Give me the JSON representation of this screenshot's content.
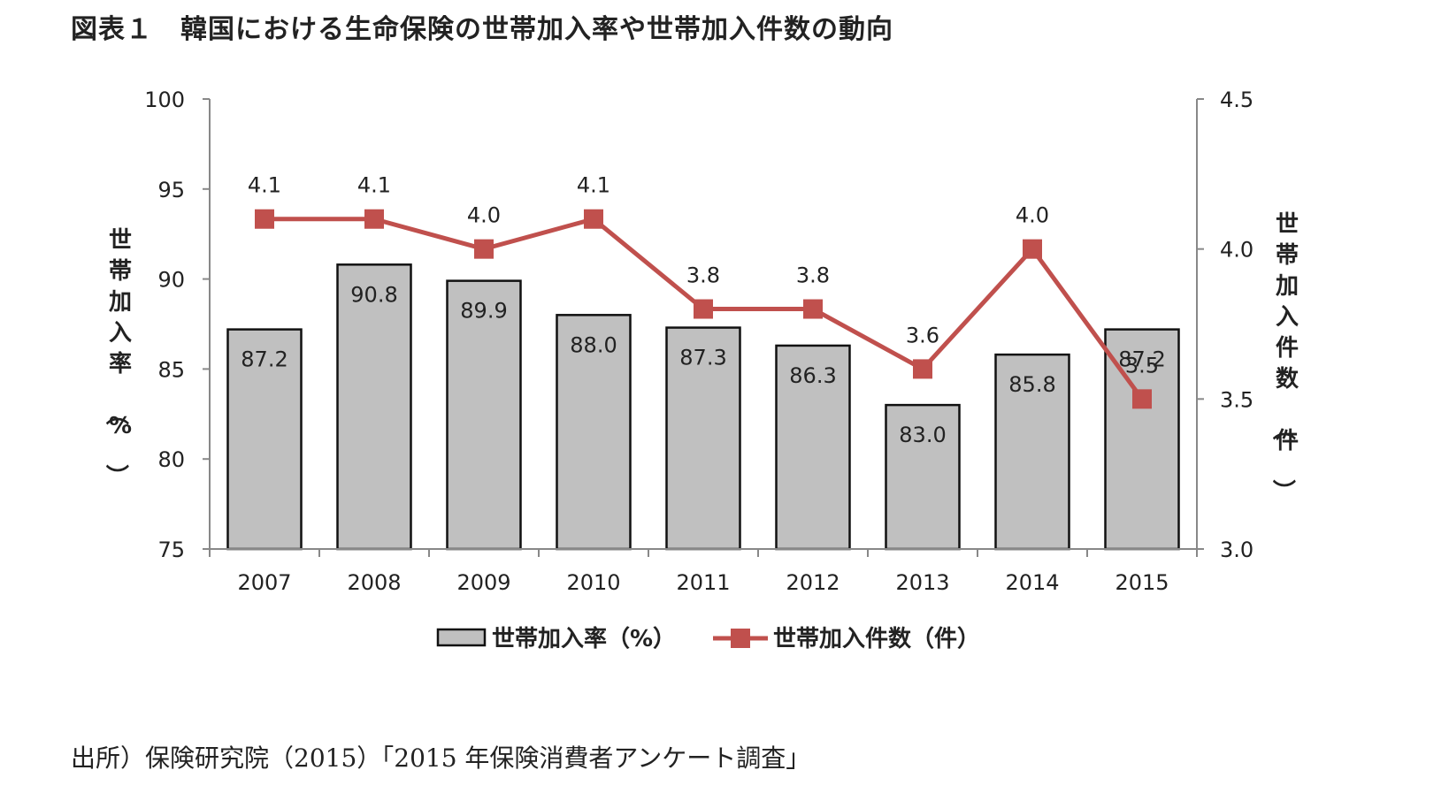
{
  "figure": {
    "title": "図表１　韓国における生命保険の世帯加入率や世帯加入件数の動向",
    "source": "出所）保険研究院（2015）「2015 年保険消費者アンケート調査」"
  },
  "chart_data": {
    "type": "bar+line",
    "categories": [
      "2007",
      "2008",
      "2009",
      "2010",
      "2011",
      "2012",
      "2013",
      "2014",
      "2015"
    ],
    "series": [
      {
        "name": "世帯加入率（%）",
        "type": "bar",
        "axis": "left",
        "values": [
          87.2,
          90.8,
          89.9,
          88.0,
          87.3,
          86.3,
          83.0,
          85.8,
          87.2
        ],
        "labels": [
          "87.2",
          "90.8",
          "89.9",
          "88.0",
          "87.3",
          "86.3",
          "83.0",
          "85.8",
          "87.2"
        ],
        "color": "#c0c0c0"
      },
      {
        "name": "世帯加入件数（件）",
        "type": "line",
        "axis": "right",
        "values": [
          4.1,
          4.1,
          4.0,
          4.1,
          3.8,
          3.8,
          3.6,
          4.0,
          3.5
        ],
        "labels": [
          "4.1",
          "4.1",
          "4.0",
          "4.1",
          "3.8",
          "3.8",
          "3.6",
          "4.0",
          "3.5"
        ],
        "color": "#c0504d"
      }
    ],
    "y_left": {
      "label": "世帯加入率（%）",
      "range": [
        75,
        100
      ],
      "ticks": [
        "75",
        "80",
        "85",
        "90",
        "95",
        "100"
      ]
    },
    "y_right": {
      "label": "世帯加入件数（件）",
      "range": [
        3.0,
        4.5
      ],
      "ticks": [
        "3.0",
        "3.5",
        "4.0",
        "4.5"
      ]
    },
    "grid": false,
    "legend": "bottom"
  }
}
